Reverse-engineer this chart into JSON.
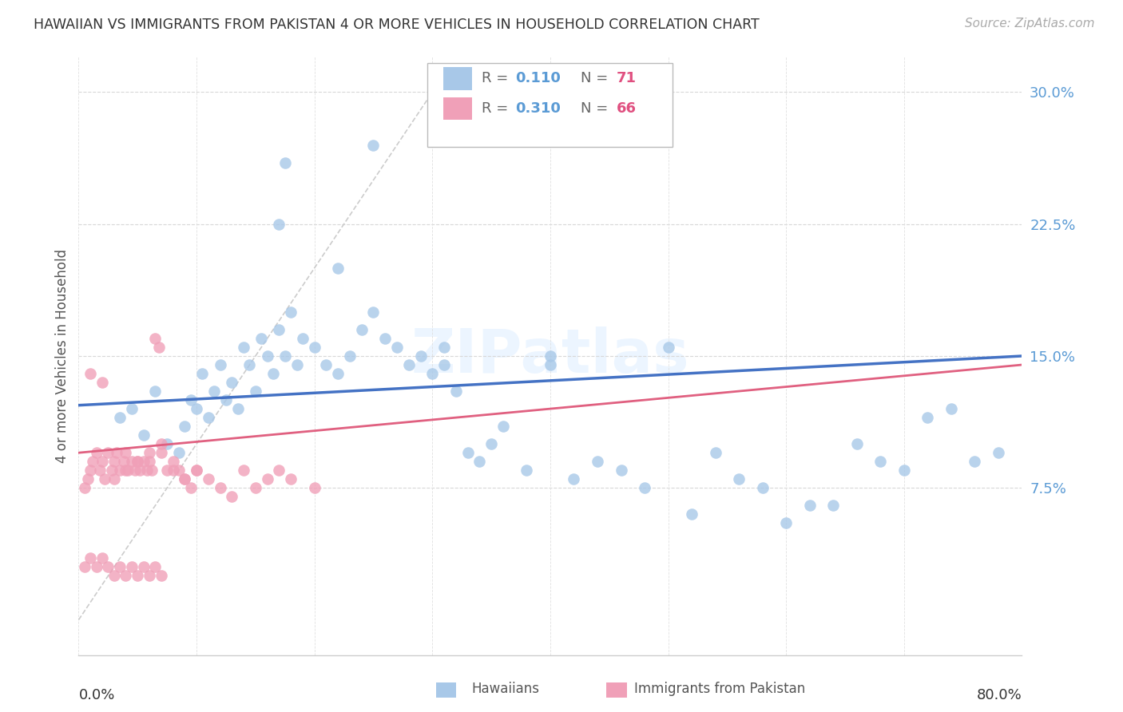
{
  "title": "HAWAIIAN VS IMMIGRANTS FROM PAKISTAN 4 OR MORE VEHICLES IN HOUSEHOLD CORRELATION CHART",
  "source": "Source: ZipAtlas.com",
  "ylabel": "4 or more Vehicles in Household",
  "xlim": [
    0.0,
    0.8
  ],
  "ylim": [
    -0.02,
    0.32
  ],
  "yticks": [
    0.075,
    0.15,
    0.225,
    0.3
  ],
  "ytick_labels": [
    "7.5%",
    "15.0%",
    "22.5%",
    "30.0%"
  ],
  "legend_r1": "0.110",
  "legend_n1": "71",
  "legend_r2": "0.310",
  "legend_n2": "66",
  "hawaiians_color": "#a8c8e8",
  "pakistan_color": "#f0a0b8",
  "trendline1_color": "#4472c4",
  "trendline2_color": "#e06080",
  "diagonal_color": "#cccccc",
  "watermark": "ZIPatlas",
  "hawaiians_x": [
    0.035,
    0.045,
    0.055,
    0.065,
    0.075,
    0.085,
    0.09,
    0.095,
    0.1,
    0.105,
    0.11,
    0.115,
    0.12,
    0.125,
    0.13,
    0.135,
    0.14,
    0.145,
    0.15,
    0.155,
    0.16,
    0.165,
    0.17,
    0.175,
    0.18,
    0.185,
    0.19,
    0.2,
    0.21,
    0.22,
    0.23,
    0.24,
    0.25,
    0.26,
    0.27,
    0.28,
    0.29,
    0.3,
    0.31,
    0.32,
    0.33,
    0.34,
    0.35,
    0.36,
    0.38,
    0.4,
    0.42,
    0.44,
    0.46,
    0.48,
    0.5,
    0.52,
    0.54,
    0.56,
    0.58,
    0.6,
    0.62,
    0.64,
    0.66,
    0.68,
    0.7,
    0.72,
    0.74,
    0.76,
    0.78,
    0.17,
    0.175,
    0.22,
    0.25,
    0.31,
    0.4
  ],
  "hawaiians_y": [
    0.115,
    0.12,
    0.105,
    0.13,
    0.1,
    0.095,
    0.11,
    0.125,
    0.12,
    0.14,
    0.115,
    0.13,
    0.145,
    0.125,
    0.135,
    0.12,
    0.155,
    0.145,
    0.13,
    0.16,
    0.15,
    0.14,
    0.165,
    0.15,
    0.175,
    0.145,
    0.16,
    0.155,
    0.145,
    0.14,
    0.15,
    0.165,
    0.175,
    0.16,
    0.155,
    0.145,
    0.15,
    0.14,
    0.145,
    0.13,
    0.095,
    0.09,
    0.1,
    0.11,
    0.085,
    0.15,
    0.08,
    0.09,
    0.085,
    0.075,
    0.155,
    0.06,
    0.095,
    0.08,
    0.075,
    0.055,
    0.065,
    0.065,
    0.1,
    0.09,
    0.085,
    0.115,
    0.12,
    0.09,
    0.095,
    0.225,
    0.26,
    0.2,
    0.27,
    0.155,
    0.145
  ],
  "pakistan_x": [
    0.005,
    0.008,
    0.01,
    0.012,
    0.015,
    0.018,
    0.02,
    0.022,
    0.025,
    0.028,
    0.03,
    0.032,
    0.035,
    0.038,
    0.04,
    0.042,
    0.045,
    0.048,
    0.05,
    0.052,
    0.055,
    0.058,
    0.06,
    0.062,
    0.065,
    0.068,
    0.07,
    0.075,
    0.08,
    0.085,
    0.09,
    0.095,
    0.1,
    0.11,
    0.12,
    0.13,
    0.14,
    0.15,
    0.16,
    0.17,
    0.18,
    0.2,
    0.005,
    0.01,
    0.015,
    0.02,
    0.025,
    0.03,
    0.035,
    0.04,
    0.045,
    0.05,
    0.055,
    0.06,
    0.065,
    0.07,
    0.01,
    0.02,
    0.03,
    0.04,
    0.05,
    0.06,
    0.07,
    0.08,
    0.09,
    0.1
  ],
  "pakistan_y": [
    0.075,
    0.08,
    0.085,
    0.09,
    0.095,
    0.085,
    0.09,
    0.08,
    0.095,
    0.085,
    0.09,
    0.095,
    0.085,
    0.09,
    0.095,
    0.085,
    0.09,
    0.085,
    0.09,
    0.085,
    0.09,
    0.085,
    0.09,
    0.085,
    0.16,
    0.155,
    0.095,
    0.085,
    0.09,
    0.085,
    0.08,
    0.075,
    0.085,
    0.08,
    0.075,
    0.07,
    0.085,
    0.075,
    0.08,
    0.085,
    0.08,
    0.075,
    0.03,
    0.035,
    0.03,
    0.035,
    0.03,
    0.025,
    0.03,
    0.025,
    0.03,
    0.025,
    0.03,
    0.025,
    0.03,
    0.025,
    0.14,
    0.135,
    0.08,
    0.085,
    0.09,
    0.095,
    0.1,
    0.085,
    0.08,
    0.085
  ]
}
